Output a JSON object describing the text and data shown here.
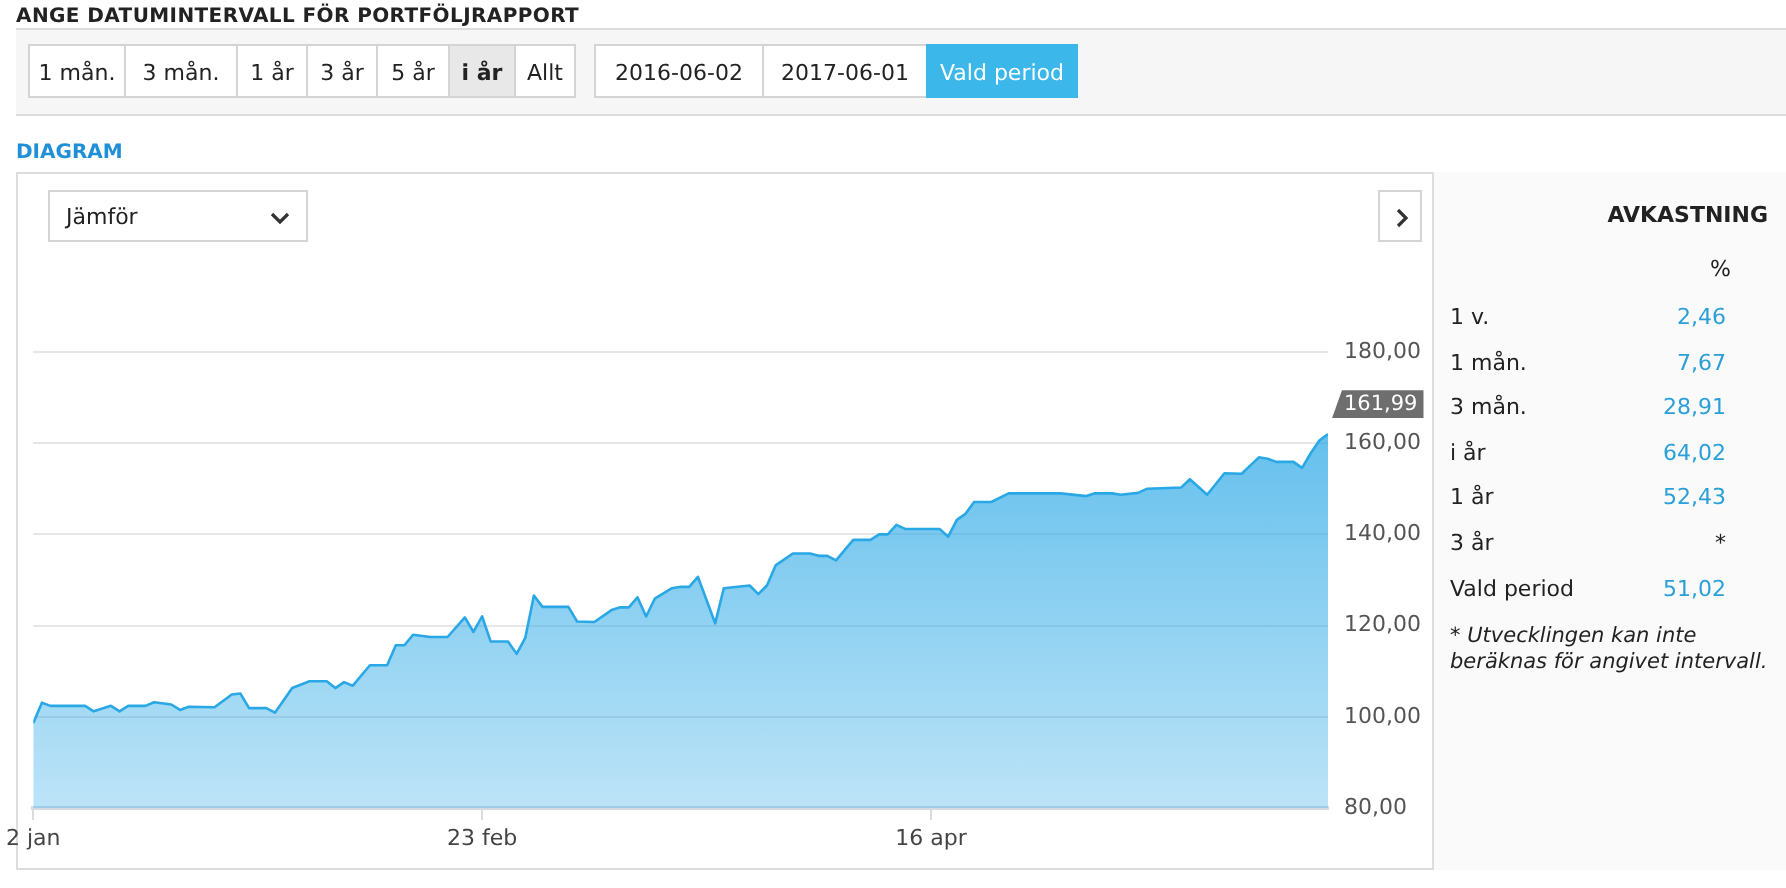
{
  "chart_data": [
    {
      "type": "area",
      "title": "ANGE DATUMINTERVALL FÖR PORTFÖLJRAPPORT",
      "subtitle": "DIAGRAM",
      "x": [
        "--01-02",
        "--01-03",
        "--01-04",
        "--01-08",
        "--01-09",
        "--01-11",
        "--01-12",
        "--01-13",
        "--01-15",
        "--01-16",
        "--01-18",
        "--01-19",
        "--01-20",
        "--01-23",
        "--01-25",
        "--01-26",
        "--01-27",
        "--01-29",
        "--01-30",
        "--02-01",
        "--02-03",
        "--02-05",
        "--02-06",
        "--02-07",
        "--02-08",
        "--02-10",
        "--02-12",
        "--02-13",
        "--02-14",
        "--02-15",
        "--02-17",
        "--02-19",
        "--02-21",
        "--02-22",
        "--02-23",
        "--02-24",
        "--02-26",
        "--02-27",
        "--02-28",
        "--03-01",
        "--03-02",
        "--03-05",
        "--03-06",
        "--03-08",
        "--03-10",
        "--03-11",
        "--03-12",
        "--03-13",
        "--03-14",
        "--03-15",
        "--03-17",
        "--03-18",
        "--03-19",
        "--03-20",
        "--03-22",
        "--03-23",
        "--03-26",
        "--03-27",
        "--03-28",
        "--03-29",
        "--03-31",
        "--04-02",
        "--04-03",
        "--04-04",
        "--04-05",
        "--04-07",
        "--04-09",
        "--04-10",
        "--04-11",
        "--04-12",
        "--04-13",
        "--04-17",
        "--04-18",
        "--04-19",
        "--04-20",
        "--04-21",
        "--04-23",
        "--04-25",
        "--05-01",
        "--05-04",
        "--05-05",
        "--05-07",
        "--05-08",
        "--05-10",
        "--05-11",
        "--05-15",
        "--05-16",
        "--05-18",
        "--05-20",
        "--05-22",
        "--05-24",
        "--05-25",
        "--05-26",
        "--05-28",
        "--05-29",
        "--05-30",
        "--05-31",
        "--06-01"
      ],
      "series": [
        {
          "color": "#2aa8e6",
          "values": [
            98.6,
            103.1,
            102.4,
            102.4,
            101.2,
            102.4,
            101.2,
            102.4,
            102.4,
            103.2,
            102.7,
            101.5,
            102.2,
            102.1,
            104.9,
            105.1,
            101.9,
            101.9,
            100.9,
            106.3,
            107.8,
            107.8,
            106.3,
            107.6,
            106.8,
            111.3,
            111.3,
            115.7,
            115.7,
            118.0,
            117.5,
            117.5,
            121.8,
            118.6,
            122.0,
            116.5,
            116.5,
            113.8,
            117.3,
            126.6,
            124.1,
            124.1,
            120.9,
            120.8,
            123.4,
            124.0,
            124.0,
            126.2,
            122.0,
            125.9,
            128.2,
            128.5,
            128.5,
            130.7,
            120.5,
            128.2,
            128.8,
            126.9,
            128.8,
            133.2,
            135.8,
            135.8,
            135.3,
            135.3,
            134.3,
            138.8,
            138.8,
            140.0,
            140.0,
            142.1,
            141.2,
            141.2,
            139.5,
            143.2,
            144.5,
            147.1,
            147.1,
            149.0,
            149.0,
            148.4,
            149.0,
            149.0,
            148.7,
            149.1,
            150.0,
            150.3,
            152.1,
            148.7,
            153.4,
            153.3,
            156.9,
            156.6,
            155.9,
            155.9,
            154.6,
            157.8,
            160.6,
            161.99
          ]
        }
      ],
      "xlim": [
        "--01-02",
        "--06-01"
      ],
      "xticks": [
        {
          "value": "--01-02",
          "label": "2 jan"
        },
        {
          "value": "--02-23",
          "label": "23 feb"
        },
        {
          "value": "--04-16",
          "label": "16 apr"
        }
      ],
      "ylim": [
        80,
        180
      ],
      "yticks": [
        {
          "value": 80,
          "label": "80,00"
        },
        {
          "value": 100,
          "label": "100,00"
        },
        {
          "value": 120,
          "label": "120,00"
        },
        {
          "value": 140,
          "label": "140,00"
        },
        {
          "value": 160,
          "label": "160,00"
        },
        {
          "value": 180,
          "label": "180,00"
        }
      ],
      "grid": "y",
      "legend": false,
      "annotations": [
        {
          "text": "161,99",
          "x": "--06-01",
          "y": 161.99
        },
        "1 mån.",
        "3 mån.",
        "1 år",
        "3 år",
        "5 år",
        "i år",
        "Allt",
        "2016-06-02",
        "2017-06-01",
        "Vald period",
        "Jämför"
      ]
    },
    {
      "type": "other",
      "title": "AVKASTNING",
      "ylabel": "%",
      "categories": [
        "1 v.",
        "1 mån.",
        "3 mån.",
        "i år",
        "1 år",
        "3 år",
        "Vald period"
      ],
      "value_labels": [
        "2,46",
        "7,67",
        "28,91",
        "64,02",
        "52,43",
        "*",
        "51,02"
      ],
      "annotations": [
        "* Utvecklingen kan inte beräknas för angivet intervall."
      ]
    }
  ]
}
